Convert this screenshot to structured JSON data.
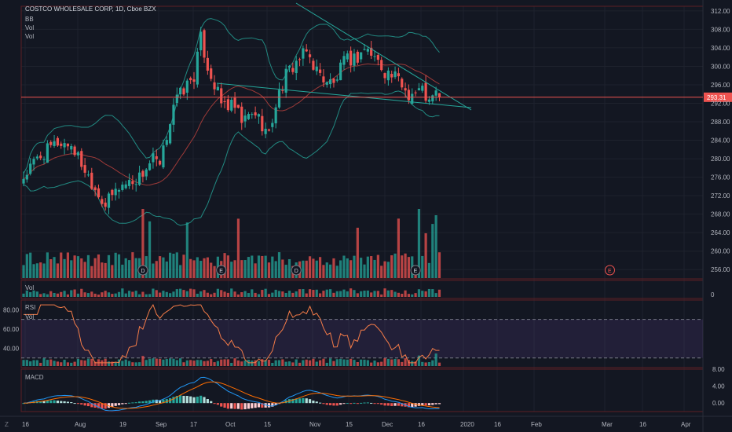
{
  "header": {
    "title": "COSTCO WHOLESALE CORP, 1D, Cboe BZX",
    "indicators": [
      "BB",
      "Vol",
      "Vol"
    ]
  },
  "panes": {
    "volume_label": "Vol",
    "rsi_labels": [
      "RSI",
      "Vol"
    ],
    "macd_label": "MACD"
  },
  "price_axis": {
    "ticks": [
      "312.00",
      "308.00",
      "304.00",
      "300.00",
      "296.00",
      "292.00",
      "288.00",
      "284.00",
      "280.00",
      "276.00",
      "272.00",
      "268.00",
      "264.00",
      "260.00",
      "256.00"
    ],
    "current_price": "293.31"
  },
  "volume_axis": {
    "ticks": [
      "0"
    ]
  },
  "rsi_axis": {
    "ticks": [
      "80.00",
      "60.00",
      "40.00"
    ]
  },
  "macd_axis": {
    "ticks": [
      "8.00",
      "4.00",
      "0.00"
    ]
  },
  "time_axis": {
    "labels": [
      "16",
      "Aug",
      "19",
      "Sep",
      "17",
      "Oct",
      "15",
      "Nov",
      "15",
      "Dec",
      "16",
      "2020",
      "16",
      "Feb",
      "Mar",
      "16",
      "Apr"
    ],
    "corner_label": "Z"
  },
  "events": {
    "dividend": "D",
    "earnings": "E"
  },
  "colors": {
    "background": "#131722",
    "up": "#26a69a",
    "down": "#ef5350",
    "bollinger": "#26a69a",
    "rsi_line": "#f57c48",
    "rsi_band": "#7e57c2",
    "macd_line": "#2196f3",
    "signal_line": "#ff6d00",
    "current_price": "#ef5350"
  },
  "chart_data": {
    "type": "candlestick",
    "symbol": "COSTCO WHOLESALE CORP",
    "interval": "1D",
    "exchange": "Cboe BZX",
    "ylim": [
      254,
      313
    ],
    "last_price": 293.31,
    "close_anchors": [
      [
        0,
        276
      ],
      [
        4,
        280
      ],
      [
        10,
        283.5
      ],
      [
        14,
        283
      ],
      [
        17,
        279
      ],
      [
        20,
        275
      ],
      [
        24,
        270
      ],
      [
        28,
        274
      ],
      [
        34,
        276
      ],
      [
        38,
        280
      ],
      [
        40,
        278
      ],
      [
        44,
        292
      ],
      [
        47,
        295
      ],
      [
        50,
        298
      ],
      [
        52,
        306
      ],
      [
        54,
        300
      ],
      [
        58,
        292
      ],
      [
        62,
        291
      ],
      [
        64,
        288
      ],
      [
        68,
        290
      ],
      [
        72,
        285
      ],
      [
        74,
        292
      ],
      [
        77,
        298
      ],
      [
        80,
        301
      ],
      [
        83,
        303
      ],
      [
        87,
        298
      ],
      [
        91,
        296
      ],
      [
        94,
        301
      ],
      [
        98,
        302
      ],
      [
        100,
        304
      ],
      [
        103,
        302
      ],
      [
        106,
        299
      ],
      [
        110,
        297
      ],
      [
        113,
        294
      ],
      [
        117,
        295
      ],
      [
        119,
        292
      ],
      [
        121,
        294
      ],
      [
        122,
        293.31
      ]
    ],
    "volume_events": [
      {
        "bar": 35,
        "type": "dividend",
        "label": "D"
      },
      {
        "bar": 58,
        "type": "earnings",
        "label": "E"
      },
      {
        "bar": 80,
        "type": "dividend",
        "label": "D"
      },
      {
        "bar": 115,
        "type": "earnings",
        "label": "E"
      },
      {
        "bar": 172,
        "type": "earnings",
        "label": "E"
      }
    ],
    "rsi": {
      "overbought": 70,
      "oversold": 30,
      "ylim": [
        20,
        90
      ]
    },
    "macd": {
      "ylim": [
        -2,
        8
      ]
    },
    "patterns": [
      "descending wedge"
    ]
  }
}
